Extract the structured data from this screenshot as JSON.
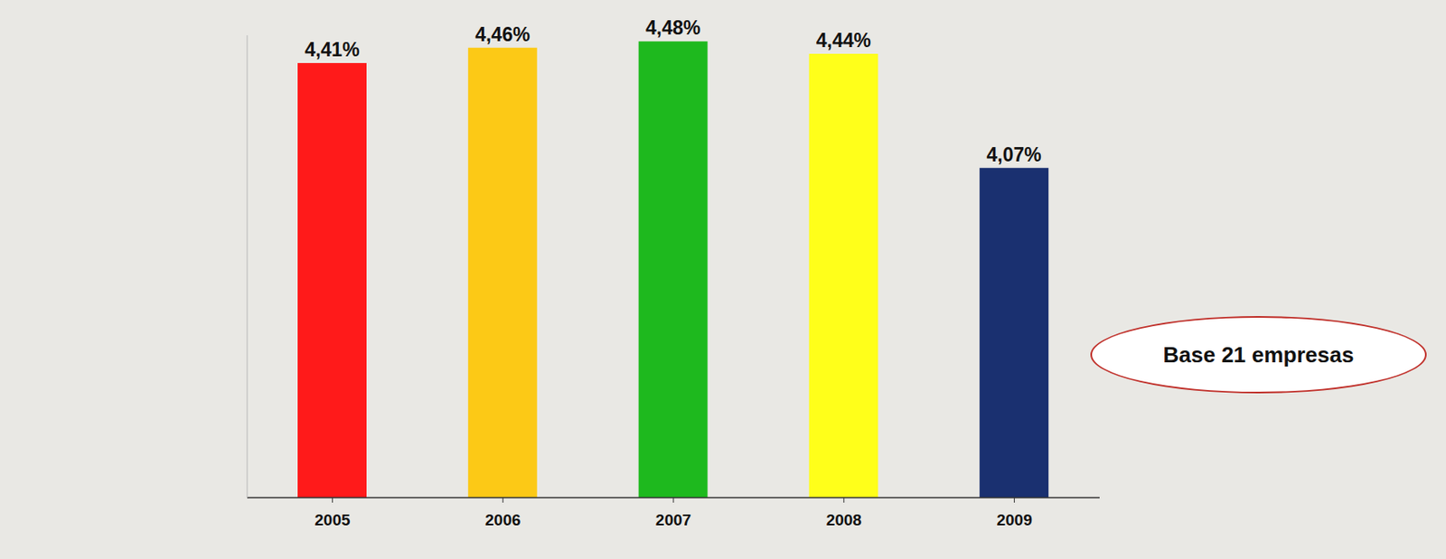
{
  "chart_data": {
    "type": "bar",
    "categories": [
      "2005",
      "2006",
      "2007",
      "2008",
      "2009"
    ],
    "values": [
      4.41,
      4.46,
      4.48,
      4.44,
      4.07
    ],
    "value_labels": [
      "4,41%",
      "4,46%",
      "4,48%",
      "4,44%",
      "4,07%"
    ],
    "colors": [
      "#ff1a1a",
      "#fcc916",
      "#1eb91e",
      "#ffff1a",
      "#1a3070"
    ],
    "ylim": [
      3,
      4.5
    ],
    "data_labels": true,
    "tick_labels": "x",
    "grid": false,
    "annotation": "Base 21 empresas"
  }
}
